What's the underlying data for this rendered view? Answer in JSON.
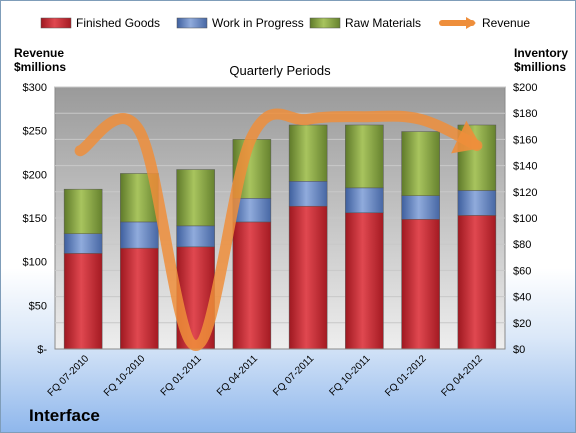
{
  "brand": "Interface",
  "chart_data": {
    "type": "bar",
    "stacked": true,
    "title": "Quarterly Periods",
    "categories": [
      "FQ 07-2010",
      "FQ 10-2010",
      "FQ 01-2011",
      "FQ 04-2011",
      "FQ 07-2011",
      "FQ 10-2011",
      "FQ 01-2012",
      "FQ 04-2012"
    ],
    "series": [
      {
        "name": "Finished Goods",
        "color": "#c0202a",
        "axis": "right",
        "values": [
          73,
          77,
          78,
          97,
          109,
          104,
          99,
          102
        ]
      },
      {
        "name": "Work in Progress",
        "color": "#5b7fbf",
        "axis": "right",
        "values": [
          15,
          20,
          16,
          18,
          19,
          19,
          18,
          19
        ]
      },
      {
        "name": "Raw Materials",
        "color": "#7e9b3e",
        "axis": "right",
        "values": [
          34,
          37,
          43,
          45,
          43,
          48,
          49,
          50
        ]
      },
      {
        "name": "Revenue",
        "type": "line",
        "color": "#ee8e3b",
        "axis": "left",
        "values": [
          227,
          250,
          4,
          243,
          263,
          266,
          263,
          233
        ]
      }
    ],
    "ylabel_left": "Revenue\n$millions",
    "ylabel_right": "Inventory\n$millions",
    "ylim_left": [
      0,
      300
    ],
    "ylim_right": [
      0,
      200
    ],
    "yticks_left": [
      "$-",
      "$50",
      "$100",
      "$150",
      "$200",
      "$250",
      "$300"
    ],
    "yticks_right": [
      "$0",
      "$20",
      "$40",
      "$60",
      "$80",
      "$100",
      "$120",
      "$140",
      "$160",
      "$180",
      "$200"
    ],
    "grid": true,
    "legend": "top"
  }
}
